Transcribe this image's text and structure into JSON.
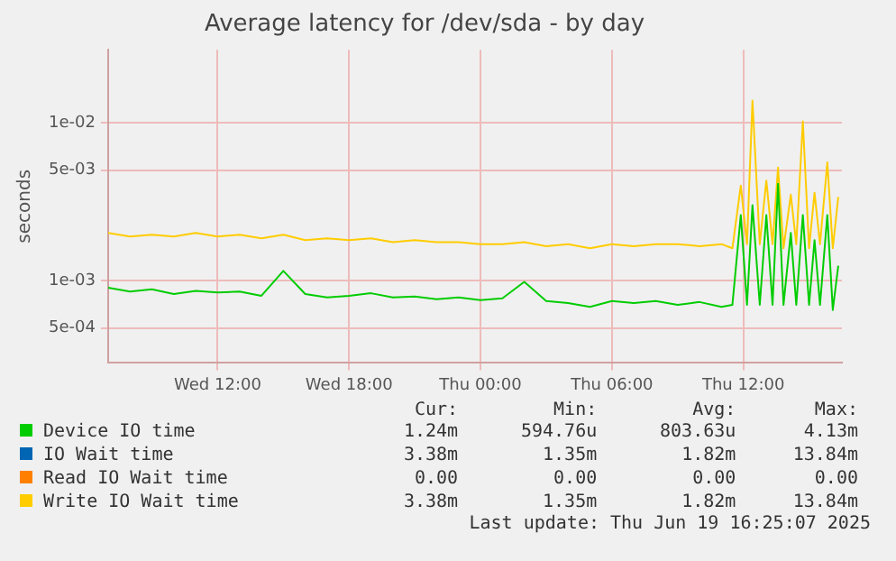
{
  "chart_data": {
    "type": "line",
    "title": "Average latency for /dev/sda - by day",
    "ylabel": "seconds",
    "log": "y",
    "x": [
      "2025-06-18T07:00",
      "2025-06-18T08:00",
      "2025-06-18T09:00",
      "2025-06-18T10:00",
      "2025-06-18T11:00",
      "2025-06-18T12:00",
      "2025-06-18T13:00",
      "2025-06-18T14:00",
      "2025-06-18T15:00",
      "2025-06-18T16:00",
      "2025-06-18T17:00",
      "2025-06-18T18:00",
      "2025-06-18T19:00",
      "2025-06-18T20:00",
      "2025-06-18T21:00",
      "2025-06-18T22:00",
      "2025-06-18T23:00",
      "2025-06-19T00:00",
      "2025-06-19T01:00",
      "2025-06-19T02:00",
      "2025-06-19T03:00",
      "2025-06-19T04:00",
      "2025-06-19T05:00",
      "2025-06-19T06:00",
      "2025-06-19T07:00",
      "2025-06-19T08:00",
      "2025-06-19T09:00",
      "2025-06-19T10:00",
      "2025-06-19T11:00",
      "2025-06-19T11:30",
      "2025-06-19T11:53",
      "2025-06-19T12:10",
      "2025-06-19T12:25",
      "2025-06-19T12:45",
      "2025-06-19T13:03",
      "2025-06-19T13:20",
      "2025-06-19T13:35",
      "2025-06-19T13:50",
      "2025-06-19T14:10",
      "2025-06-19T14:25",
      "2025-06-19T14:43",
      "2025-06-19T15:00",
      "2025-06-19T15:15",
      "2025-06-19T15:30",
      "2025-06-19T15:50",
      "2025-06-19T16:05",
      "2025-06-19T16:20"
    ],
    "series": [
      {
        "name": "Device IO time",
        "color": "#00cc00",
        "values": [
          0.0009,
          0.00085,
          0.00088,
          0.00082,
          0.00086,
          0.00084,
          0.00085,
          0.0008,
          0.00115,
          0.00082,
          0.00078,
          0.0008,
          0.00083,
          0.00078,
          0.00079,
          0.00076,
          0.00078,
          0.00075,
          0.00077,
          0.00098,
          0.00074,
          0.00072,
          0.00068,
          0.00074,
          0.00072,
          0.00074,
          0.0007,
          0.00073,
          0.00068,
          0.0007,
          0.0026,
          0.0007,
          0.003,
          0.0007,
          0.0026,
          0.0007,
          0.0041,
          0.0007,
          0.002,
          0.0007,
          0.0026,
          0.0007,
          0.0018,
          0.0007,
          0.0026,
          0.00065,
          0.00124
        ]
      },
      {
        "name": "IO Wait time",
        "color": "#0066b3",
        "values": [
          null,
          null,
          null,
          null,
          null,
          null,
          null,
          null,
          null,
          null,
          null,
          null,
          null,
          null,
          null,
          null,
          null,
          null,
          null,
          null,
          null,
          null,
          null,
          null,
          null,
          null,
          null,
          null,
          null,
          null,
          null,
          null,
          null,
          null,
          null,
          null,
          null,
          null,
          null,
          null,
          null,
          null,
          null,
          null,
          null,
          null,
          null
        ]
      },
      {
        "name": "Read IO Wait time",
        "color": "#ff8000",
        "values": [
          null,
          null,
          null,
          null,
          null,
          null,
          null,
          null,
          null,
          null,
          null,
          null,
          null,
          null,
          null,
          null,
          null,
          null,
          null,
          null,
          null,
          null,
          null,
          null,
          null,
          null,
          null,
          null,
          null,
          null,
          null,
          null,
          null,
          null,
          null,
          null,
          null,
          null,
          null,
          null,
          null,
          null,
          null,
          null,
          null,
          null,
          null
        ]
      },
      {
        "name": "Write IO Wait time",
        "color": "#ffcc00",
        "values": [
          0.002,
          0.0019,
          0.00195,
          0.0019,
          0.002,
          0.0019,
          0.00195,
          0.00185,
          0.00195,
          0.0018,
          0.00185,
          0.0018,
          0.00185,
          0.00175,
          0.0018,
          0.00175,
          0.00175,
          0.0017,
          0.0017,
          0.00175,
          0.00165,
          0.0017,
          0.0016,
          0.0017,
          0.00165,
          0.0017,
          0.0017,
          0.00165,
          0.0017,
          0.0016,
          0.004,
          0.0017,
          0.0138,
          0.0017,
          0.0043,
          0.0017,
          0.0052,
          0.0016,
          0.0035,
          0.0017,
          0.0102,
          0.0016,
          0.0036,
          0.0017,
          0.0056,
          0.0016,
          0.00338
        ]
      }
    ],
    "xlim": [
      "2025-06-18T07:00",
      "2025-06-19T16:30"
    ],
    "xticks": [
      {
        "value": "2025-06-18T12:00",
        "label": "Wed 12:00"
      },
      {
        "value": "2025-06-18T18:00",
        "label": "Wed 18:00"
      },
      {
        "value": "2025-06-19T00:00",
        "label": "Thu 00:00"
      },
      {
        "value": "2025-06-19T06:00",
        "label": "Thu 06:00"
      },
      {
        "value": "2025-06-19T12:00",
        "label": "Thu 12:00"
      }
    ],
    "ylim": [
      0.0003,
      0.029
    ],
    "yticks": [
      {
        "value": 0.0005,
        "label": "5e-04"
      },
      {
        "value": 0.001,
        "label": "1e-03"
      },
      {
        "value": 0.005,
        "label": "5e-03"
      },
      {
        "value": 0.01,
        "label": "1e-02"
      }
    ],
    "grid": true,
    "legend": "bottom",
    "annotations": [
      "Cur:",
      "Min:",
      "Avg:",
      "Max:",
      "1.24m",
      "594.76u",
      "803.63u",
      "4.13m",
      "3.38m",
      "1.35m",
      "1.82m",
      "13.84m",
      "0.00",
      "0.00",
      "0.00",
      "0.00",
      "3.38m",
      "1.35m",
      "1.82m",
      "13.84m",
      "Last update: Thu Jun 19 16:25:07 2025"
    ]
  }
}
